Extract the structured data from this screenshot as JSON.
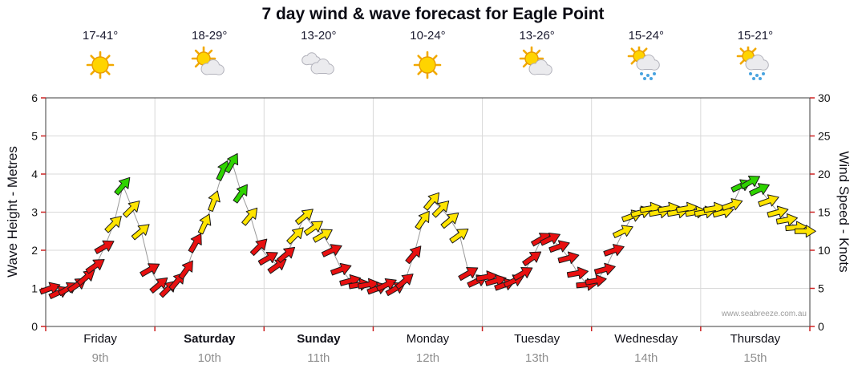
{
  "chart_data": {
    "type": "line",
    "title": "7 day wind & wave forecast for Eagle Point",
    "watermark": "www.seabreeze.com.au",
    "ylabel": "Wave Height - Metres",
    "y2label": "Wind Speed - Knots",
    "ylim": [
      0,
      6
    ],
    "y2lim": [
      0,
      30
    ],
    "y_ticks": [
      0,
      1,
      2,
      3,
      4,
      5,
      6
    ],
    "y2_ticks": [
      0,
      5,
      10,
      15,
      20,
      25,
      30
    ],
    "points_per_day": 12,
    "thresholds_knots": {
      "yellow_min": 12,
      "green_min": 17.5
    },
    "colors": {
      "red": "#e81010",
      "yellow": "#ffe400",
      "green": "#2ed300",
      "line": "#9a9a9a",
      "tick": "#cc2222",
      "grid": "#d9d9d9",
      "border": "#3c3c3c"
    },
    "days": [
      {
        "name": "Friday",
        "date": "9th",
        "bold": false,
        "temp": "17-41°",
        "icon": "sunny",
        "knots": [
          5,
          4.5,
          5,
          5.5,
          6.5,
          8,
          10.5,
          13.5,
          18.5,
          15.5,
          12.5,
          7.5
        ],
        "dirs": [
          -20,
          -25,
          -30,
          -35,
          -40,
          -35,
          -30,
          -45,
          -50,
          -45,
          -40,
          -30
        ]
      },
      {
        "name": "Saturday",
        "date": "10th",
        "bold": true,
        "temp": "18-29°",
        "icon": "partly-cloudy",
        "knots": [
          5.5,
          5,
          6,
          7.5,
          11,
          13.5,
          16.5,
          20.5,
          21.5,
          17.5,
          14.5,
          10.5
        ],
        "dirs": [
          -40,
          -45,
          -50,
          -55,
          -60,
          -65,
          -70,
          -65,
          -60,
          -55,
          -50,
          -45
        ]
      },
      {
        "name": "Sunday",
        "date": "11th",
        "bold": true,
        "temp": "13-20°",
        "icon": "cloudy",
        "knots": [
          9,
          8,
          9.5,
          12,
          14.5,
          13,
          12,
          10,
          7.5,
          6,
          5.5,
          5.5
        ],
        "dirs": [
          -30,
          -35,
          -40,
          -45,
          -40,
          -35,
          -30,
          -25,
          -20,
          -15,
          -10,
          -10
        ]
      },
      {
        "name": "Monday",
        "date": "12th",
        "bold": false,
        "temp": "10-24°",
        "icon": "sunny",
        "knots": [
          5,
          5.5,
          5,
          6,
          9.5,
          14,
          16.5,
          15.5,
          14,
          12,
          7,
          6
        ],
        "dirs": [
          -20,
          -25,
          -30,
          -40,
          -50,
          -55,
          -50,
          -45,
          -40,
          -35,
          -30,
          -25
        ]
      },
      {
        "name": "Tuesday",
        "date": "13th",
        "bold": false,
        "temp": "13-26°",
        "icon": "partly-cloudy",
        "knots": [
          6.5,
          6,
          5.5,
          6,
          7,
          9,
          11.5,
          11.5,
          10.5,
          9,
          7,
          5.5
        ],
        "dirs": [
          -10,
          -15,
          -20,
          -25,
          -30,
          -35,
          -30,
          -25,
          -20,
          -15,
          -10,
          -5
        ]
      },
      {
        "name": "Wednesday",
        "date": "14th",
        "bold": false,
        "temp": "15-24°",
        "icon": "sun-showers",
        "knots": [
          6,
          7.5,
          10,
          12.5,
          14.5,
          15,
          15.5,
          15,
          15.5,
          15,
          15.5,
          15
        ],
        "dirs": [
          -10,
          -15,
          -20,
          -25,
          -20,
          -15,
          -10,
          -10,
          -10,
          -10,
          -10,
          -10
        ]
      },
      {
        "name": "Thursday",
        "date": "15th",
        "bold": false,
        "temp": "15-21°",
        "icon": "sun-showers",
        "knots": [
          15,
          15.5,
          15,
          16,
          18.5,
          19,
          18,
          16.5,
          15,
          14,
          13,
          12.5
        ],
        "dirs": [
          -10,
          -10,
          -15,
          -20,
          -25,
          -30,
          -25,
          -20,
          -15,
          -10,
          -5,
          0
        ]
      }
    ]
  }
}
